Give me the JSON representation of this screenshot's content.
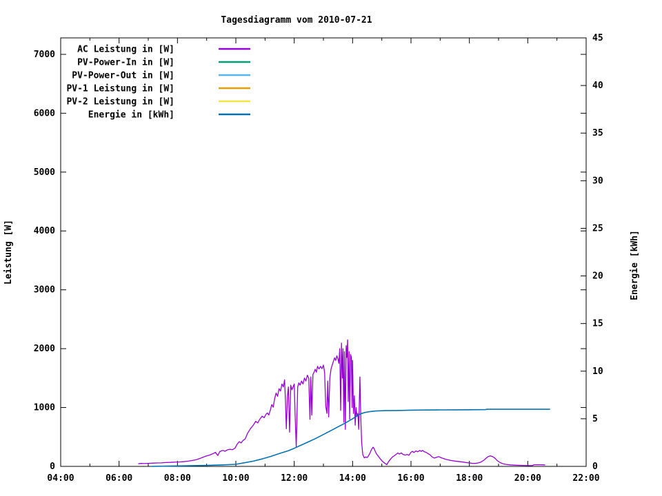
{
  "chart_data": {
    "type": "line",
    "title": "Tagesdiagramm vom 2010-07-21",
    "background": "#ffffff",
    "border_color": "#000000",
    "grid": false,
    "legend_position": "top-left-inside",
    "x_axis": {
      "range_hours": [
        4,
        22
      ],
      "major_hours": [
        4,
        6,
        8,
        10,
        12,
        14,
        16,
        18,
        20,
        22
      ],
      "major_labels": [
        "04:00",
        "06:00",
        "08:00",
        "10:00",
        "12:00",
        "14:00",
        "16:00",
        "18:00",
        "20:00",
        "22:00"
      ],
      "minor_hours": [
        5,
        7,
        9,
        11,
        13,
        15,
        17,
        19,
        21
      ]
    },
    "y_axis": {
      "label": "Leistung [W]",
      "range": [
        0,
        7280
      ],
      "ticks": [
        0,
        1000,
        2000,
        3000,
        4000,
        5000,
        6000,
        7000
      ]
    },
    "y2_axis": {
      "label": "Energie [kWh]",
      "range": [
        0,
        45
      ],
      "ticks": [
        0,
        5,
        10,
        15,
        20,
        25,
        30,
        35,
        40,
        45
      ]
    },
    "legend": [
      {
        "label": "AC Leistung in [W]",
        "color": "#9400d3"
      },
      {
        "label": "PV-Power-In in [W]",
        "color": "#009e73"
      },
      {
        "label": "PV-Power-Out in [W]",
        "color": "#56b4e9"
      },
      {
        "label": "PV-1 Leistung in [W]",
        "color": "#e69f00"
      },
      {
        "label": "PV-2 Leistung in [W]",
        "color": "#f0e442"
      },
      {
        "label": "Energie in [kWh]",
        "color": "#0072b2"
      }
    ],
    "series": [
      {
        "name": "AC Leistung in [W]",
        "color": "#9400d3",
        "axis": "y",
        "points": [
          [
            6.67,
            45
          ],
          [
            6.75,
            50
          ],
          [
            6.85,
            48
          ],
          [
            7.0,
            52
          ],
          [
            7.15,
            55
          ],
          [
            7.3,
            58
          ],
          [
            7.45,
            60
          ],
          [
            7.6,
            65
          ],
          [
            7.75,
            68
          ],
          [
            7.9,
            72
          ],
          [
            8.05,
            75
          ],
          [
            8.2,
            80
          ],
          [
            8.35,
            88
          ],
          [
            8.5,
            100
          ],
          [
            8.65,
            115
          ],
          [
            8.8,
            140
          ],
          [
            8.9,
            160
          ],
          [
            9.0,
            178
          ],
          [
            9.1,
            192
          ],
          [
            9.2,
            212
          ],
          [
            9.3,
            238
          ],
          [
            9.38,
            185
          ],
          [
            9.45,
            252
          ],
          [
            9.55,
            272
          ],
          [
            9.63,
            258
          ],
          [
            9.72,
            282
          ],
          [
            9.8,
            292
          ],
          [
            9.88,
            283
          ],
          [
            9.97,
            308
          ],
          [
            10.05,
            382
          ],
          [
            10.12,
            420
          ],
          [
            10.18,
            398
          ],
          [
            10.25,
            442
          ],
          [
            10.32,
            465
          ],
          [
            10.4,
            560
          ],
          [
            10.5,
            640
          ],
          [
            10.6,
            702
          ],
          [
            10.68,
            765
          ],
          [
            10.75,
            738
          ],
          [
            10.82,
            800
          ],
          [
            10.9,
            852
          ],
          [
            10.97,
            828
          ],
          [
            11.03,
            882
          ],
          [
            11.08,
            908
          ],
          [
            11.13,
            872
          ],
          [
            11.18,
            955
          ],
          [
            11.23,
            1050
          ],
          [
            11.28,
            1005
          ],
          [
            11.33,
            1150
          ],
          [
            11.38,
            1245
          ],
          [
            11.43,
            1190
          ],
          [
            11.48,
            1320
          ],
          [
            11.53,
            1280
          ],
          [
            11.58,
            1400
          ],
          [
            11.63,
            1350
          ],
          [
            11.67,
            1470
          ],
          [
            11.7,
            1100
          ],
          [
            11.73,
            640
          ],
          [
            11.77,
            1200
          ],
          [
            11.8,
            1350
          ],
          [
            11.84,
            580
          ],
          [
            11.88,
            1380
          ],
          [
            11.92,
            1300
          ],
          [
            11.96,
            1350
          ],
          [
            12.0,
            1400
          ],
          [
            12.03,
            900
          ],
          [
            12.07,
            330
          ],
          [
            12.12,
            1350
          ],
          [
            12.16,
            1420
          ],
          [
            12.2,
            1380
          ],
          [
            12.25,
            1450
          ],
          [
            12.3,
            1400
          ],
          [
            12.35,
            1500
          ],
          [
            12.4,
            1450
          ],
          [
            12.45,
            1550
          ],
          [
            12.5,
            1495
          ],
          [
            12.54,
            800
          ],
          [
            12.57,
            1520
          ],
          [
            12.6,
            870
          ],
          [
            12.64,
            1560
          ],
          [
            12.68,
            1600
          ],
          [
            12.72,
            1650
          ],
          [
            12.76,
            1600
          ],
          [
            12.8,
            1700
          ],
          [
            12.85,
            1655
          ],
          [
            12.9,
            1700
          ],
          [
            12.95,
            1660
          ],
          [
            13.0,
            1720
          ],
          [
            13.04,
            1600
          ],
          [
            13.08,
            1020
          ],
          [
            13.12,
            900
          ],
          [
            13.15,
            1450
          ],
          [
            13.18,
            840
          ],
          [
            13.22,
            1500
          ],
          [
            13.26,
            1650
          ],
          [
            13.3,
            1720
          ],
          [
            13.34,
            1780
          ],
          [
            13.38,
            1845
          ],
          [
            13.42,
            1800
          ],
          [
            13.46,
            1880
          ],
          [
            13.5,
            1820
          ],
          [
            13.53,
            1750
          ],
          [
            13.56,
            2000
          ],
          [
            13.59,
            950
          ],
          [
            13.62,
            2095
          ],
          [
            13.65,
            1500
          ],
          [
            13.67,
            2000
          ],
          [
            13.7,
            750
          ],
          [
            13.72,
            1950
          ],
          [
            13.75,
            630
          ],
          [
            13.78,
            2050
          ],
          [
            13.8,
            1850
          ],
          [
            13.83,
            2150
          ],
          [
            13.85,
            1100
          ],
          [
            13.88,
            1950
          ],
          [
            13.9,
            800
          ],
          [
            13.93,
            1900
          ],
          [
            13.96,
            1850
          ],
          [
            13.98,
            1000
          ],
          [
            14.0,
            1800
          ],
          [
            14.03,
            900
          ],
          [
            14.06,
            1200
          ],
          [
            14.09,
            700
          ],
          [
            14.12,
            1000
          ],
          [
            14.15,
            850
          ],
          [
            14.18,
            900
          ],
          [
            14.21,
            630
          ],
          [
            14.25,
            1520
          ],
          [
            14.28,
            820
          ],
          [
            14.31,
            400
          ],
          [
            14.35,
            200
          ],
          [
            14.4,
            145
          ],
          [
            14.45,
            160
          ],
          [
            14.5,
            150
          ],
          [
            14.55,
            185
          ],
          [
            14.6,
            230
          ],
          [
            14.65,
            290
          ],
          [
            14.7,
            325
          ],
          [
            14.73,
            310
          ],
          [
            14.77,
            262
          ],
          [
            14.82,
            212
          ],
          [
            14.88,
            172
          ],
          [
            14.95,
            128
          ],
          [
            15.02,
            85
          ],
          [
            15.1,
            55
          ],
          [
            15.17,
            28
          ],
          [
            15.23,
            80
          ],
          [
            15.3,
            125
          ],
          [
            15.37,
            162
          ],
          [
            15.43,
            182
          ],
          [
            15.5,
            208
          ],
          [
            15.55,
            228
          ],
          [
            15.6,
            210
          ],
          [
            15.67,
            228
          ],
          [
            15.73,
            202
          ],
          [
            15.8,
            192
          ],
          [
            15.87,
            202
          ],
          [
            15.93,
            188
          ],
          [
            16.0,
            240
          ],
          [
            16.05,
            255
          ],
          [
            16.1,
            236
          ],
          [
            16.17,
            262
          ],
          [
            16.23,
            248
          ],
          [
            16.3,
            270
          ],
          [
            16.35,
            255
          ],
          [
            16.4,
            272
          ],
          [
            16.45,
            250
          ],
          [
            16.52,
            238
          ],
          [
            16.58,
            218
          ],
          [
            16.65,
            198
          ],
          [
            16.72,
            162
          ],
          [
            16.8,
            142
          ],
          [
            16.88,
            156
          ],
          [
            16.95,
            166
          ],
          [
            17.03,
            148
          ],
          [
            17.12,
            132
          ],
          [
            17.2,
            118
          ],
          [
            17.3,
            108
          ],
          [
            17.4,
            98
          ],
          [
            17.5,
            90
          ],
          [
            17.6,
            84
          ],
          [
            17.7,
            78
          ],
          [
            17.8,
            72
          ],
          [
            17.9,
            64
          ],
          [
            18.0,
            58
          ],
          [
            18.1,
            52
          ],
          [
            18.2,
            50
          ],
          [
            18.3,
            58
          ],
          [
            18.4,
            75
          ],
          [
            18.5,
            105
          ],
          [
            18.58,
            142
          ],
          [
            18.65,
            168
          ],
          [
            18.72,
            178
          ],
          [
            18.8,
            165
          ],
          [
            18.88,
            138
          ],
          [
            18.95,
            100
          ],
          [
            19.05,
            65
          ],
          [
            19.15,
            45
          ],
          [
            19.25,
            34
          ],
          [
            19.4,
            26
          ],
          [
            19.6,
            20
          ],
          [
            19.8,
            16
          ],
          [
            20.0,
            14
          ],
          [
            20.15,
            13
          ],
          [
            20.22,
            28
          ],
          [
            20.35,
            29
          ],
          [
            20.5,
            27
          ],
          [
            20.58,
            26
          ]
        ]
      },
      {
        "name": "PV-Power-In in [W]",
        "color": "#009e73",
        "axis": "y",
        "points": []
      },
      {
        "name": "PV-Power-Out in [W]",
        "color": "#56b4e9",
        "axis": "y",
        "points": []
      },
      {
        "name": "PV-1 Leistung in [W]",
        "color": "#e69f00",
        "axis": "y",
        "points": []
      },
      {
        "name": "PV-2 Leistung in [W]",
        "color": "#f0e442",
        "axis": "y",
        "points": []
      },
      {
        "name": "Energie in [kWh]",
        "color": "#0072b2",
        "axis": "y2",
        "points": [
          [
            7.1,
            0.0
          ],
          [
            7.5,
            0.02
          ],
          [
            8.0,
            0.05
          ],
          [
            8.5,
            0.08
          ],
          [
            9.0,
            0.1
          ],
          [
            9.5,
            0.15
          ],
          [
            10.0,
            0.22
          ],
          [
            10.3,
            0.38
          ],
          [
            10.6,
            0.55
          ],
          [
            10.9,
            0.78
          ],
          [
            11.2,
            1.05
          ],
          [
            11.5,
            1.35
          ],
          [
            11.8,
            1.65
          ],
          [
            12.0,
            1.9
          ],
          [
            12.25,
            2.25
          ],
          [
            12.5,
            2.6
          ],
          [
            12.75,
            2.95
          ],
          [
            13.0,
            3.35
          ],
          [
            13.25,
            3.75
          ],
          [
            13.5,
            4.15
          ],
          [
            13.75,
            4.55
          ],
          [
            14.0,
            5.0
          ],
          [
            14.1,
            5.2
          ],
          [
            14.2,
            5.4
          ],
          [
            14.3,
            5.55
          ],
          [
            14.45,
            5.68
          ],
          [
            14.6,
            5.76
          ],
          [
            14.8,
            5.82
          ],
          [
            15.1,
            5.85
          ],
          [
            15.5,
            5.87
          ],
          [
            16.0,
            5.9
          ],
          [
            16.5,
            5.92
          ],
          [
            17.0,
            5.93
          ],
          [
            17.5,
            5.94
          ],
          [
            18.0,
            5.95
          ],
          [
            18.55,
            5.96
          ],
          [
            18.62,
            6.0
          ],
          [
            19.0,
            6.0
          ],
          [
            20.0,
            6.0
          ],
          [
            20.75,
            6.0
          ]
        ]
      }
    ]
  }
}
